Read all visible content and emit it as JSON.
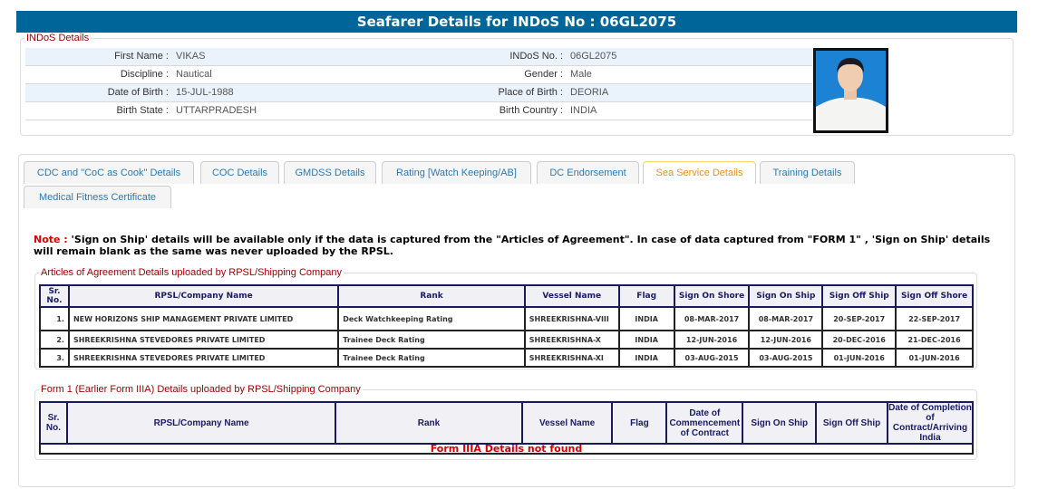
{
  "header": {
    "title": "Seafarer Details for INDoS No : 06GL2075"
  },
  "indos": {
    "legend": "INDoS Details",
    "rows": [
      {
        "l1": "First Name :",
        "v1": "VIKAS",
        "l2": "INDoS No. :",
        "v2": "06GL2075"
      },
      {
        "l1": "Discipline :",
        "v1": "Nautical",
        "l2": "Gender :",
        "v2": "Male"
      },
      {
        "l1": "Date of Birth :",
        "v1": "15-JUL-1988",
        "l2": "Place of Birth :",
        "v2": "DEORIA"
      },
      {
        "l1": "Birth State :",
        "v1": "UTTARPRADESH",
        "l2": "Birth Country :",
        "v2": "INDIA"
      }
    ]
  },
  "tabs": [
    {
      "label": "CDC and \"CoC as Cook\" Details"
    },
    {
      "label": "COC Details"
    },
    {
      "label": "GMDSS Details"
    },
    {
      "label": "Rating [Watch Keeping/AB]"
    },
    {
      "label": "DC Endorsement"
    },
    {
      "label": "Sea Service Details",
      "active": true
    },
    {
      "label": "Training Details"
    },
    {
      "label": "Medical Fitness Certificate"
    }
  ],
  "note": {
    "label": "Note :",
    "text": " 'Sign on Ship' details will be available only if the data is captured from the \"Articles of Agreement\". In case of data captured from \"FORM 1\" , 'Sign on Ship' details will remain blank as the same was never uploaded by the RPSL."
  },
  "articles": {
    "legend": "Articles of Agreement Details uploaded by RPSL/Shipping Company",
    "headers": [
      "Sr. No.",
      "RPSL/Company Name",
      "Rank",
      "Vessel Name",
      "Flag",
      "Sign On Shore",
      "Sign On Ship",
      "Sign Off Ship",
      "Sign Off Shore"
    ],
    "rows": [
      [
        "1.",
        "NEW HORIZONS SHIP MANAGEMENT PRIVATE LIMITED",
        "Deck Watchkeeping Rating",
        "SHREEKRISHNA-VIII",
        "INDIA",
        "08-MAR-2017",
        "08-MAR-2017",
        "20-SEP-2017",
        "22-SEP-2017"
      ],
      [
        "2.",
        "SHREEKRISHNA STEVEDORES PRIVATE LIMITED",
        "Trainee Deck Rating",
        "SHREEKRISHNA-X",
        "INDIA",
        "12-JUN-2016",
        "12-JUN-2016",
        "20-DEC-2016",
        "21-DEC-2016"
      ],
      [
        "3.",
        "SHREEKRISHNA STEVEDORES PRIVATE LIMITED",
        "Trainee Deck Rating",
        "SHREEKRISHNA-XI",
        "INDIA",
        "03-AUG-2015",
        "03-AUG-2015",
        "01-JUN-2016",
        "01-JUN-2016"
      ]
    ]
  },
  "form1": {
    "legend": "Form 1 (Earlier Form IIIA) Details uploaded by RPSL/Shipping Company",
    "headers": [
      "Sr. No.",
      "RPSL/Company Name",
      "Rank",
      "Vessel Name",
      "Flag",
      "Date of Commencement of Contract",
      "Sign On Ship",
      "Sign Off Ship",
      "Date of Completion of Contract/Arriving India"
    ],
    "empty": "Form IIIA Details not found"
  }
}
